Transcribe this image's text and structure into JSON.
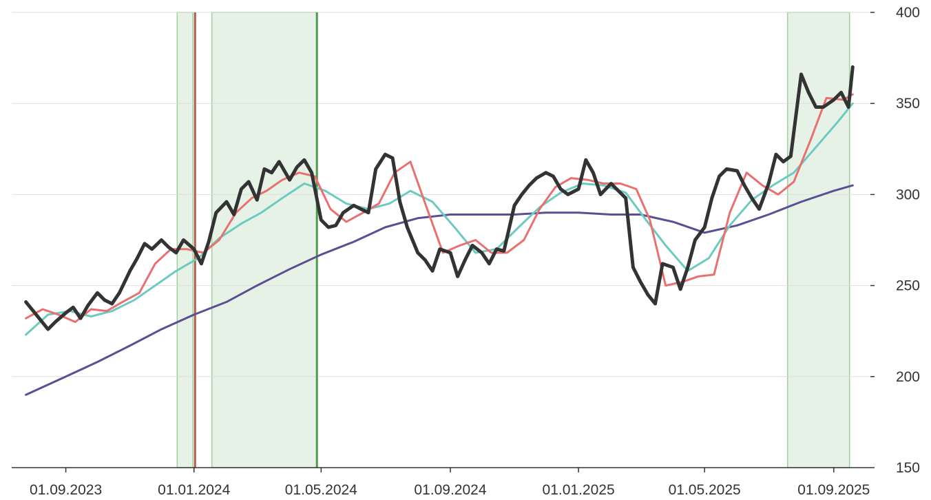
{
  "chart_data": {
    "type": "line",
    "title": "",
    "xlabel": "",
    "ylabel": "",
    "x_ticks": [
      "01.09.2023",
      "01.01.2024",
      "01.05.2024",
      "01.09.2024",
      "01.01.2025",
      "01.05.2025",
      "01.09.2025"
    ],
    "y_ticks": [
      "150",
      "200",
      "250",
      "300",
      "350",
      "400"
    ],
    "ylim": [
      150,
      400
    ],
    "xlim": [
      "2023-07-20",
      "2025-09-28"
    ],
    "y_axis_position": "right",
    "grid": "horizontal",
    "highlighted_ranges": [
      {
        "start": "2023-12-16",
        "end": "2023-12-31"
      },
      {
        "start": "2024-01-18",
        "end": "2024-04-27"
      },
      {
        "start": "2025-07-19",
        "end": "2025-09-16"
      }
    ],
    "markers": [
      {
        "date": "2024-01-02",
        "color": "#b55a4a"
      },
      {
        "date": "2024-04-27",
        "color": "#4e9a4e"
      }
    ],
    "colors": {
      "price": "#333333",
      "ma_short": "#e8706f",
      "ma_mid": "#6ccac0",
      "ma_long": "#5b4f94",
      "band_fill": "#e6f2e6",
      "band_border": "#9fcf9f",
      "grid": "#dddddd"
    },
    "series": [
      {
        "key": "price",
        "x": [
          "2023-07-25",
          "2023-08-01",
          "2023-08-08",
          "2023-08-15",
          "2023-08-22",
          "2023-09-01",
          "2023-09-08",
          "2023-09-15",
          "2023-09-22",
          "2023-10-01",
          "2023-10-08",
          "2023-10-15",
          "2023-10-22",
          "2023-11-01",
          "2023-11-08",
          "2023-11-15",
          "2023-11-22",
          "2023-12-01",
          "2023-12-08",
          "2023-12-15",
          "2023-12-22",
          "2024-01-01",
          "2024-01-08",
          "2024-01-15",
          "2024-01-22",
          "2024-02-01",
          "2024-02-08",
          "2024-02-15",
          "2024-02-22",
          "2024-03-01",
          "2024-03-08",
          "2024-03-15",
          "2024-03-22",
          "2024-04-01",
          "2024-04-08",
          "2024-04-15",
          "2024-04-22",
          "2024-05-01",
          "2024-05-08",
          "2024-05-15",
          "2024-05-22",
          "2024-06-01",
          "2024-06-08",
          "2024-06-15",
          "2024-06-22",
          "2024-07-01",
          "2024-07-08",
          "2024-07-15",
          "2024-07-22",
          "2024-08-01",
          "2024-08-08",
          "2024-08-15",
          "2024-08-22",
          "2024-09-01",
          "2024-09-08",
          "2024-09-15",
          "2024-09-22",
          "2024-10-01",
          "2024-10-08",
          "2024-10-15",
          "2024-10-22",
          "2024-11-01",
          "2024-11-08",
          "2024-11-15",
          "2024-11-22",
          "2024-12-01",
          "2024-12-08",
          "2024-12-15",
          "2024-12-22",
          "2025-01-01",
          "2025-01-08",
          "2025-01-15",
          "2025-01-22",
          "2025-02-01",
          "2025-02-08",
          "2025-02-15",
          "2025-02-22",
          "2025-03-01",
          "2025-03-08",
          "2025-03-15",
          "2025-03-22",
          "2025-04-01",
          "2025-04-08",
          "2025-04-15",
          "2025-04-22",
          "2025-05-01",
          "2025-05-08",
          "2025-05-15",
          "2025-05-22",
          "2025-06-01",
          "2025-06-08",
          "2025-06-15",
          "2025-06-22",
          "2025-07-01",
          "2025-07-08",
          "2025-07-15",
          "2025-07-22",
          "2025-08-01",
          "2025-08-08",
          "2025-08-15",
          "2025-08-22",
          "2025-09-01",
          "2025-09-08",
          "2025-09-15",
          "2025-09-19"
        ],
        "values": [
          241,
          236,
          231,
          226,
          230,
          235,
          238,
          232,
          239,
          246,
          242,
          240,
          246,
          258,
          265,
          273,
          270,
          275,
          271,
          268,
          275,
          270,
          262,
          274,
          290,
          296,
          289,
          303,
          307,
          297,
          314,
          312,
          318,
          308,
          315,
          319,
          312,
          286,
          282,
          283,
          290,
          294,
          292,
          290,
          314,
          322,
          320,
          296,
          282,
          268,
          264,
          258,
          270,
          268,
          255,
          264,
          272,
          268,
          262,
          270,
          269,
          294,
          300,
          305,
          309,
          312,
          310,
          303,
          300,
          303,
          319,
          312,
          300,
          306,
          302,
          298,
          260,
          252,
          245,
          240,
          262,
          260,
          248,
          260,
          275,
          282,
          298,
          310,
          314,
          313,
          305,
          298,
          292,
          306,
          322,
          318,
          321,
          366,
          356,
          348,
          348,
          352,
          356,
          348,
          370
        ]
      },
      {
        "key": "ma_short",
        "x": [
          "2023-07-25",
          "2023-08-10",
          "2023-08-25",
          "2023-09-10",
          "2023-09-25",
          "2023-10-10",
          "2023-10-25",
          "2023-11-10",
          "2023-11-25",
          "2023-12-10",
          "2023-12-25",
          "2024-01-10",
          "2024-01-25",
          "2024-02-10",
          "2024-02-25",
          "2024-03-10",
          "2024-03-25",
          "2024-04-10",
          "2024-04-25",
          "2024-05-10",
          "2024-05-25",
          "2024-06-10",
          "2024-06-25",
          "2024-07-10",
          "2024-07-25",
          "2024-08-10",
          "2024-08-25",
          "2024-09-10",
          "2024-09-25",
          "2024-10-10",
          "2024-10-25",
          "2024-11-10",
          "2024-11-25",
          "2024-12-10",
          "2024-12-25",
          "2025-01-10",
          "2025-01-25",
          "2025-02-10",
          "2025-02-25",
          "2025-03-10",
          "2025-03-25",
          "2025-04-10",
          "2025-04-25",
          "2025-05-10",
          "2025-05-25",
          "2025-06-10",
          "2025-06-25",
          "2025-07-10",
          "2025-07-25",
          "2025-08-10",
          "2025-08-25",
          "2025-09-10",
          "2025-09-19"
        ],
        "values": [
          232,
          237,
          234,
          230,
          237,
          236,
          241,
          246,
          262,
          270,
          270,
          268,
          275,
          290,
          298,
          302,
          308,
          312,
          310,
          292,
          285,
          290,
          295,
          312,
          318,
          292,
          268,
          272,
          275,
          268,
          268,
          275,
          292,
          304,
          309,
          308,
          306,
          306,
          303,
          286,
          250,
          252,
          255,
          256,
          290,
          312,
          305,
          300,
          307,
          330,
          353,
          352,
          355
        ]
      },
      {
        "key": "ma_mid",
        "x": [
          "2023-07-25",
          "2023-08-15",
          "2023-09-05",
          "2023-09-25",
          "2023-10-15",
          "2023-11-05",
          "2023-11-25",
          "2023-12-15",
          "2024-01-05",
          "2024-01-25",
          "2024-02-15",
          "2024-03-05",
          "2024-03-25",
          "2024-04-15",
          "2024-05-05",
          "2024-05-25",
          "2024-06-15",
          "2024-07-05",
          "2024-07-25",
          "2024-08-15",
          "2024-09-05",
          "2024-09-25",
          "2024-10-15",
          "2024-11-05",
          "2024-11-25",
          "2024-12-15",
          "2025-01-05",
          "2025-01-25",
          "2025-02-15",
          "2025-03-05",
          "2025-03-25",
          "2025-04-15",
          "2025-05-05",
          "2025-05-25",
          "2025-06-15",
          "2025-07-05",
          "2025-07-25",
          "2025-08-15",
          "2025-09-05",
          "2025-09-19"
        ],
        "values": [
          223,
          234,
          236,
          233,
          236,
          242,
          250,
          258,
          265,
          276,
          284,
          290,
          298,
          306,
          302,
          295,
          292,
          295,
          302,
          296,
          282,
          268,
          270,
          282,
          293,
          301,
          306,
          305,
          301,
          287,
          272,
          258,
          265,
          283,
          297,
          305,
          312,
          326,
          340,
          350
        ]
      },
      {
        "key": "ma_long",
        "x": [
          "2023-07-25",
          "2023-09-01",
          "2023-10-01",
          "2023-11-01",
          "2023-12-01",
          "2024-01-01",
          "2024-02-01",
          "2024-03-01",
          "2024-04-01",
          "2024-05-01",
          "2024-06-01",
          "2024-07-01",
          "2024-08-01",
          "2024-09-01",
          "2024-10-01",
          "2024-11-01",
          "2024-12-01",
          "2025-01-01",
          "2025-02-01",
          "2025-03-01",
          "2025-04-01",
          "2025-05-01",
          "2025-06-01",
          "2025-07-01",
          "2025-08-01",
          "2025-09-01",
          "2025-09-19"
        ],
        "values": [
          190,
          200,
          208,
          217,
          226,
          234,
          241,
          250,
          259,
          267,
          274,
          282,
          287,
          289,
          289,
          289,
          290,
          290,
          289,
          289,
          285,
          279,
          283,
          289,
          296,
          302,
          305
        ]
      }
    ]
  }
}
